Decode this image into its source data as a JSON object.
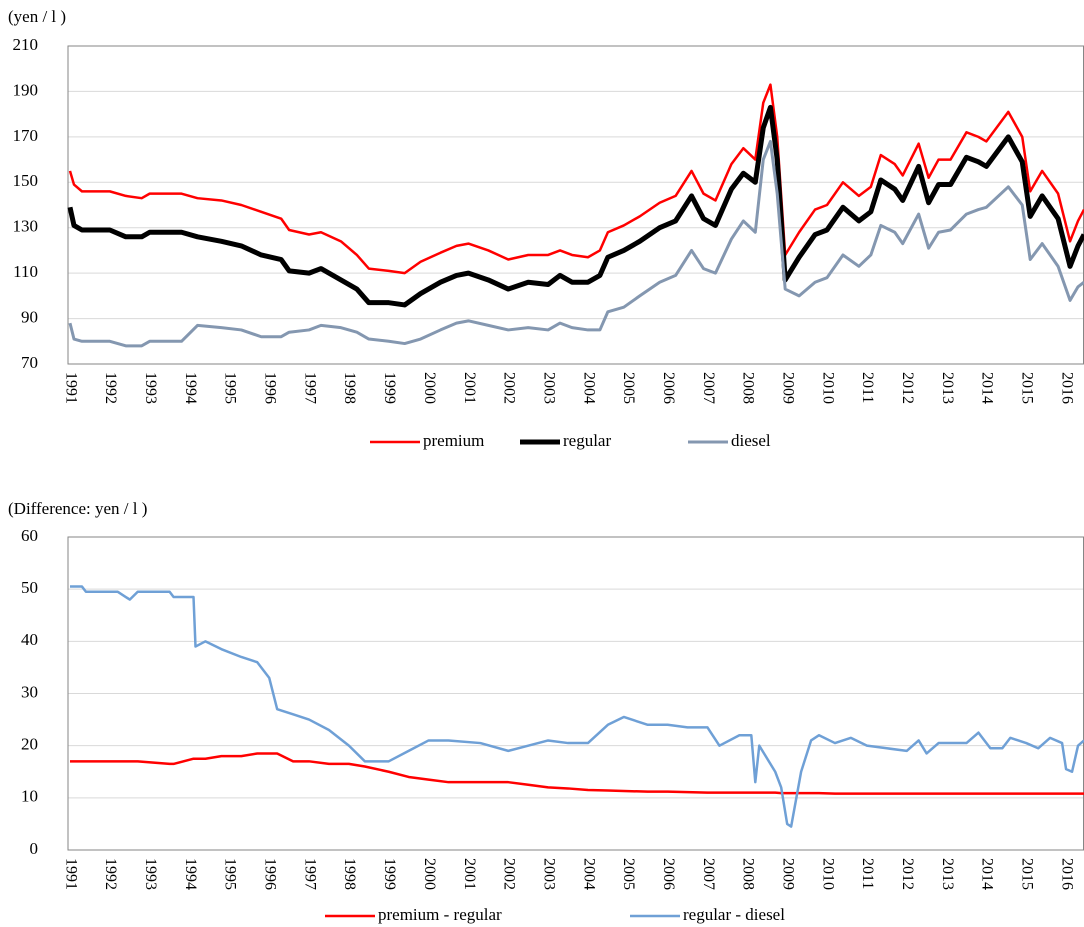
{
  "chart_data": [
    {
      "type": "line",
      "y_label": "(yen / l )",
      "x": [
        1991.0,
        1991.1,
        1991.3,
        1992.0,
        1992.4,
        1992.8,
        1993.0,
        1993.8,
        1994.2,
        1994.8,
        1995.3,
        1995.8,
        1996.3,
        1996.5,
        1997.0,
        1997.3,
        1997.8,
        1998.2,
        1998.5,
        1999.0,
        1999.4,
        1999.8,
        2000.3,
        2000.7,
        2001.0,
        2001.5,
        2002.0,
        2002.5,
        2003.0,
        2003.3,
        2003.6,
        2004.0,
        2004.3,
        2004.5,
        2004.9,
        2005.3,
        2005.8,
        2006.2,
        2006.6,
        2006.9,
        2007.2,
        2007.6,
        2007.9,
        2008.2,
        2008.4,
        2008.58,
        2008.75,
        2008.95,
        2009.3,
        2009.7,
        2010.0,
        2010.4,
        2010.8,
        2011.1,
        2011.35,
        2011.7,
        2011.9,
        2012.3,
        2012.55,
        2012.8,
        2013.1,
        2013.5,
        2013.8,
        2014.0,
        2014.55,
        2014.9,
        2015.1,
        2015.4,
        2015.8,
        2016.1,
        2016.3,
        2016.45
      ],
      "series": [
        {
          "name": "premium",
          "color": "#ff0000",
          "values": [
            155,
            149,
            146,
            146,
            144,
            143,
            145,
            145,
            143,
            142,
            140,
            137,
            134,
            129,
            127,
            128,
            124,
            118,
            112,
            111,
            110,
            115,
            119,
            122,
            123,
            120,
            116,
            118,
            118,
            120,
            118,
            117,
            120,
            128,
            131,
            135,
            141,
            144,
            155,
            145,
            142,
            158,
            165,
            160,
            185,
            193,
            170,
            118,
            128,
            138,
            140,
            150,
            144,
            148,
            162,
            158,
            153,
            167,
            152,
            160,
            160,
            172,
            170,
            168,
            181,
            170,
            146,
            155,
            145,
            124,
            133,
            138
          ]
        },
        {
          "name": "regular",
          "color": "#000000",
          "values": [
            139,
            131,
            129,
            129,
            126,
            126,
            128,
            128,
            126,
            124,
            122,
            118,
            116,
            111,
            110,
            112,
            107,
            103,
            97,
            97,
            96,
            101,
            106,
            109,
            110,
            107,
            103,
            106,
            105,
            109,
            106,
            106,
            109,
            117,
            120,
            124,
            130,
            133,
            144,
            134,
            131,
            147,
            154,
            150,
            174,
            183,
            160,
            107,
            117,
            127,
            129,
            139,
            133,
            137,
            151,
            147,
            142,
            157,
            141,
            149,
            149,
            161,
            159,
            157,
            170,
            159,
            135,
            144,
            134,
            113,
            122,
            127
          ]
        },
        {
          "name": "diesel",
          "color": "#8497b0",
          "values": [
            88,
            81,
            80,
            80,
            78,
            78,
            80,
            80,
            87,
            86,
            85,
            82,
            82,
            84,
            85,
            87,
            86,
            84,
            81,
            80,
            79,
            81,
            85,
            88,
            89,
            87,
            85,
            86,
            85,
            88,
            86,
            85,
            85,
            93,
            95,
            100,
            106,
            109,
            120,
            112,
            110,
            125,
            133,
            128,
            160,
            168,
            145,
            103,
            100,
            106,
            108,
            118,
            113,
            118,
            131,
            128,
            123,
            136,
            121,
            128,
            129,
            136,
            138,
            139,
            148,
            140,
            116,
            123,
            113,
            98,
            104,
            106
          ]
        }
      ],
      "xlim": [
        1990.95,
        2016.45
      ],
      "xticks": [
        1991,
        1992,
        1993,
        1994,
        1995,
        1996,
        1997,
        1998,
        1999,
        2000,
        2001,
        2002,
        2003,
        2004,
        2005,
        2006,
        2007,
        2008,
        2009,
        2010,
        2011,
        2012,
        2013,
        2014,
        2015,
        2016
      ],
      "ylim": [
        70,
        210
      ],
      "yticks": [
        70,
        90,
        110,
        130,
        150,
        170,
        190,
        210
      ],
      "grid": true,
      "legend": "bottom"
    },
    {
      "type": "line",
      "y_label": "(Difference: yen / l )",
      "x": [
        1991.0,
        1991.3,
        1991.4,
        1992.2,
        1992.5,
        1992.7,
        1993.5,
        1993.6,
        1994.1,
        1994.15,
        1994.4,
        1994.8,
        1995.3,
        1995.7,
        1996.0,
        1996.2,
        1996.6,
        1997.0,
        1997.5,
        1998.0,
        1998.4,
        1999.0,
        1999.5,
        2000.0,
        2000.5,
        2001.3,
        2002.0,
        2002.5,
        2003.0,
        2003.5,
        2004.0,
        2004.5,
        2004.9,
        2005.5,
        2006.0,
        2006.5,
        2007.0,
        2007.3,
        2007.8,
        2008.1,
        2008.2,
        2008.3,
        2008.7,
        2008.85,
        2009.0,
        2009.1,
        2009.35,
        2009.6,
        2009.8,
        2010.2,
        2010.6,
        2011.0,
        2011.5,
        2012.0,
        2012.3,
        2012.5,
        2012.8,
        2013.5,
        2013.8,
        2014.1,
        2014.4,
        2014.6,
        2015.0,
        2015.3,
        2015.6,
        2015.9,
        2016.0,
        2016.15,
        2016.3,
        2016.45
      ],
      "series": [
        {
          "name": "premium - regular",
          "color": "#ff0000",
          "values": [
            17,
            17,
            17,
            17,
            17,
            17,
            16.5,
            16.5,
            17.5,
            17.5,
            17.5,
            18,
            18,
            18.5,
            18.5,
            18.5,
            17,
            17,
            16.5,
            16.5,
            16,
            15,
            14,
            13.5,
            13,
            13,
            13,
            12.5,
            12,
            11.8,
            11.5,
            11.4,
            11.3,
            11.2,
            11.2,
            11.1,
            11,
            11,
            11,
            11,
            11,
            11,
            11,
            10.9,
            10.9,
            10.9,
            10.9,
            10.9,
            10.9,
            10.8,
            10.8,
            10.8,
            10.8,
            10.8,
            10.8,
            10.8,
            10.8,
            10.8,
            10.8,
            10.8,
            10.8,
            10.8,
            10.8,
            10.8,
            10.8,
            10.8,
            10.8,
            10.8,
            10.8,
            10.8
          ]
        },
        {
          "name": "regular - diesel",
          "color": "#6fa0d6",
          "values": [
            50.5,
            50.5,
            49.5,
            49.5,
            48,
            49.5,
            49.5,
            48.5,
            48.5,
            39,
            40,
            38.5,
            37,
            36,
            33,
            27,
            26,
            25,
            23,
            20,
            17,
            17,
            19,
            21,
            21,
            20.5,
            19,
            20,
            21,
            20.5,
            20.5,
            24,
            25.5,
            24,
            24,
            23.5,
            23.5,
            20,
            22,
            22,
            13,
            20,
            15,
            12,
            5,
            4.5,
            15,
            21,
            22,
            20.5,
            21.5,
            20,
            19.5,
            19,
            21,
            18.5,
            20.5,
            20.5,
            22.5,
            19.5,
            19.5,
            21.5,
            20.5,
            19.5,
            21.5,
            20.5,
            15.5,
            15,
            20,
            21
          ]
        }
      ],
      "xlim": [
        1990.95,
        2016.45
      ],
      "xticks": [
        1991,
        1992,
        1993,
        1994,
        1995,
        1996,
        1997,
        1998,
        1999,
        2000,
        2001,
        2002,
        2003,
        2004,
        2005,
        2006,
        2007,
        2008,
        2009,
        2010,
        2011,
        2012,
        2013,
        2014,
        2015,
        2016
      ],
      "ylim": [
        0,
        60
      ],
      "yticks": [
        0,
        10,
        20,
        30,
        40,
        50,
        60
      ],
      "grid": true,
      "legend": "bottom"
    }
  ]
}
